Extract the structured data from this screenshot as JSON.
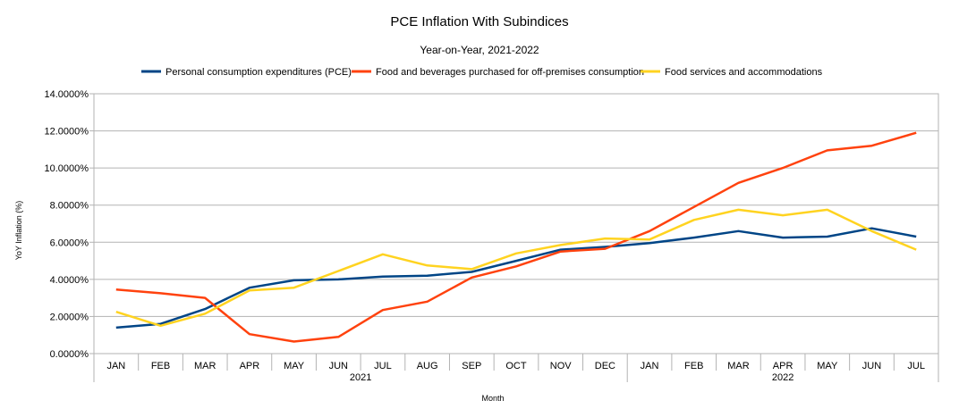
{
  "chart_data": {
    "type": "line",
    "title": "PCE Inflation With Subindices",
    "subtitle": "Year-on-Year, 2021-2022",
    "xlabel": "Month",
    "ylabel": "YoY Inflation (%)",
    "ylim": [
      0,
      14
    ],
    "yticks": [
      0,
      2,
      4,
      6,
      8,
      10,
      12,
      14
    ],
    "ytick_labels": [
      "0.0000%",
      "2.0000%",
      "4.0000%",
      "6.0000%",
      "8.0000%",
      "10.0000%",
      "12.0000%",
      "14.0000%"
    ],
    "legend_position": "top",
    "categories": [
      "JAN",
      "FEB",
      "MAR",
      "APR",
      "MAY",
      "JUN",
      "JUL",
      "AUG",
      "SEP",
      "OCT",
      "NOV",
      "DEC",
      "JAN",
      "FEB",
      "MAR",
      "APR",
      "MAY",
      "JUN",
      "JUL"
    ],
    "year_groups": [
      {
        "label": "2021",
        "start": 0,
        "end": 11
      },
      {
        "label": "2022",
        "start": 12,
        "end": 18
      }
    ],
    "series": [
      {
        "name": "Personal consumption expenditures (PCE)",
        "color": "#004586",
        "values": [
          1.4,
          1.6,
          2.4,
          3.55,
          3.95,
          4.0,
          4.15,
          4.2,
          4.4,
          5.0,
          5.6,
          5.75,
          5.95,
          6.25,
          6.6,
          6.25,
          6.3,
          6.75,
          6.3
        ]
      },
      {
        "name": "Food and beverages purchased for off-premises consumption",
        "color": "#ff420e",
        "values": [
          3.45,
          3.25,
          3.0,
          1.05,
          0.65,
          0.9,
          2.35,
          2.8,
          4.1,
          4.7,
          5.5,
          5.65,
          6.6,
          7.9,
          9.2,
          10.0,
          10.95,
          11.2,
          11.9
        ]
      },
      {
        "name": "Food services and accommodations",
        "color": "#ffd320",
        "values": [
          2.25,
          1.5,
          2.15,
          3.4,
          3.55,
          4.45,
          5.35,
          4.75,
          4.55,
          5.4,
          5.85,
          6.2,
          6.15,
          7.2,
          7.75,
          7.45,
          7.75,
          6.6,
          5.6
        ]
      }
    ]
  }
}
